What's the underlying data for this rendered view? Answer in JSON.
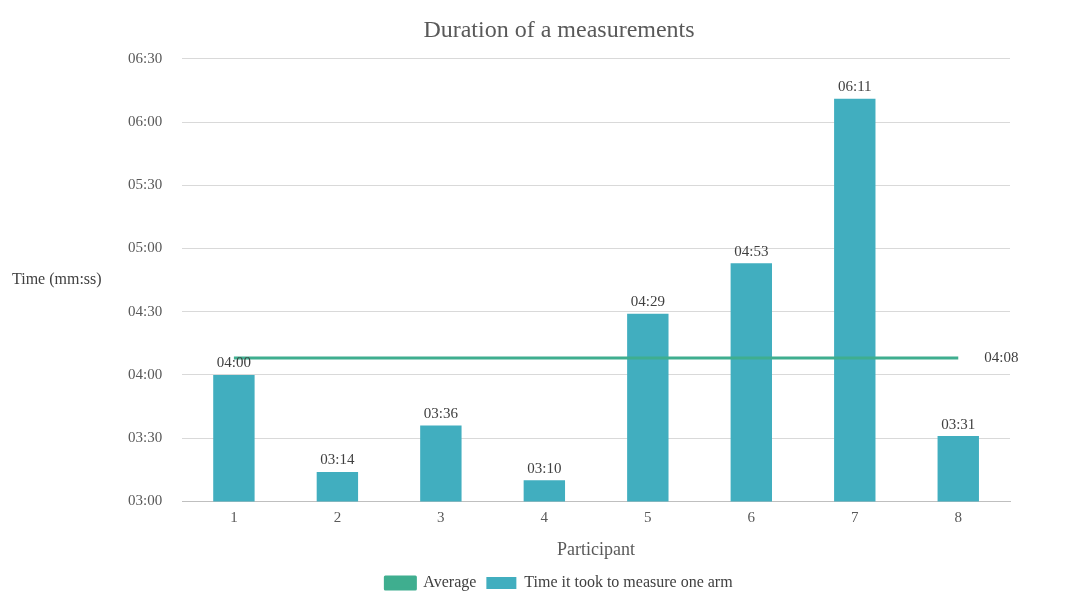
{
  "chart_data": {
    "type": "bar",
    "title": "Duration of a measurements",
    "xlabel": "Participant",
    "ylabel": "Time (mm:ss)",
    "categories": [
      "1",
      "2",
      "3",
      "4",
      "5",
      "6",
      "7",
      "8"
    ],
    "series": [
      {
        "name": "Time it took to measure one arm",
        "color": "#41aebf",
        "values": [
          240,
          194,
          216,
          190,
          269,
          293,
          371,
          211
        ],
        "value_labels": [
          "04:00",
          "03:14",
          "03:36",
          "03:10",
          "04:29",
          "04:53",
          "06:11",
          "03:31"
        ]
      },
      {
        "name": "Average",
        "type": "line",
        "color": "#3fae8f",
        "values": [
          248,
          248,
          248,
          248,
          248,
          248,
          248,
          248
        ],
        "value_labels": [
          null,
          null,
          null,
          null,
          null,
          null,
          null,
          "04:08"
        ]
      }
    ],
    "ylim": [
      180,
      390
    ],
    "yticks": [
      {
        "value": 180,
        "label": "03:00"
      },
      {
        "value": 210,
        "label": "03:30"
      },
      {
        "value": 240,
        "label": "04:00"
      },
      {
        "value": 270,
        "label": "04:30"
      },
      {
        "value": 300,
        "label": "05:00"
      },
      {
        "value": 330,
        "label": "05:30"
      },
      {
        "value": 360,
        "label": "06:00"
      },
      {
        "value": 390,
        "label": "06:30"
      }
    ],
    "grid": "y",
    "legend": "bottom",
    "marker": "none"
  }
}
